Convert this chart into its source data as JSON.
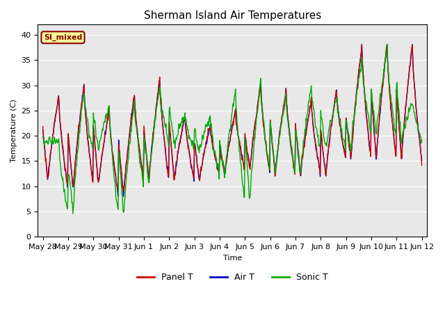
{
  "title": "Sherman Island Air Temperatures",
  "xlabel": "Time",
  "ylabel": "Temperature (C)",
  "ylim": [
    0,
    42
  ],
  "yticks": [
    0,
    5,
    10,
    15,
    20,
    25,
    30,
    35,
    40
  ],
  "x_tick_labels": [
    "May 28",
    "May 29",
    "May 30",
    "May 31",
    "Jun 1",
    "Jun 2",
    "Jun 3",
    "Jun 4",
    "Jun 5",
    "Jun 6",
    "Jun 7",
    "Jun 8",
    "Jun 9",
    "Jun 10",
    "Jun 11",
    "Jun 12"
  ],
  "legend_labels": [
    "Panel T",
    "Air T",
    "Sonic T"
  ],
  "panel_color": "#cc0000",
  "air_color": "#0000cc",
  "sonic_color": "#00aa00",
  "annotation_text": "SI_mixed",
  "bg_color": "#e8e8e8",
  "title_fontsize": 11,
  "day_peaks": [
    28,
    30,
    25,
    28,
    31,
    24,
    22,
    25,
    30,
    29,
    27,
    29,
    38,
    38,
    38,
    29
  ],
  "day_mins": [
    11,
    9,
    10,
    8,
    11,
    11,
    11,
    12,
    13,
    12,
    12,
    12,
    15,
    15,
    15,
    15
  ],
  "sonic_peaks": [
    19,
    29,
    26,
    27,
    30,
    24,
    24,
    29,
    31,
    28,
    30,
    28,
    35,
    37,
    27,
    29
  ],
  "sonic_mins": [
    19,
    5,
    17,
    4,
    10,
    18,
    17,
    12,
    7,
    12,
    12,
    17,
    17,
    20,
    19,
    19
  ]
}
